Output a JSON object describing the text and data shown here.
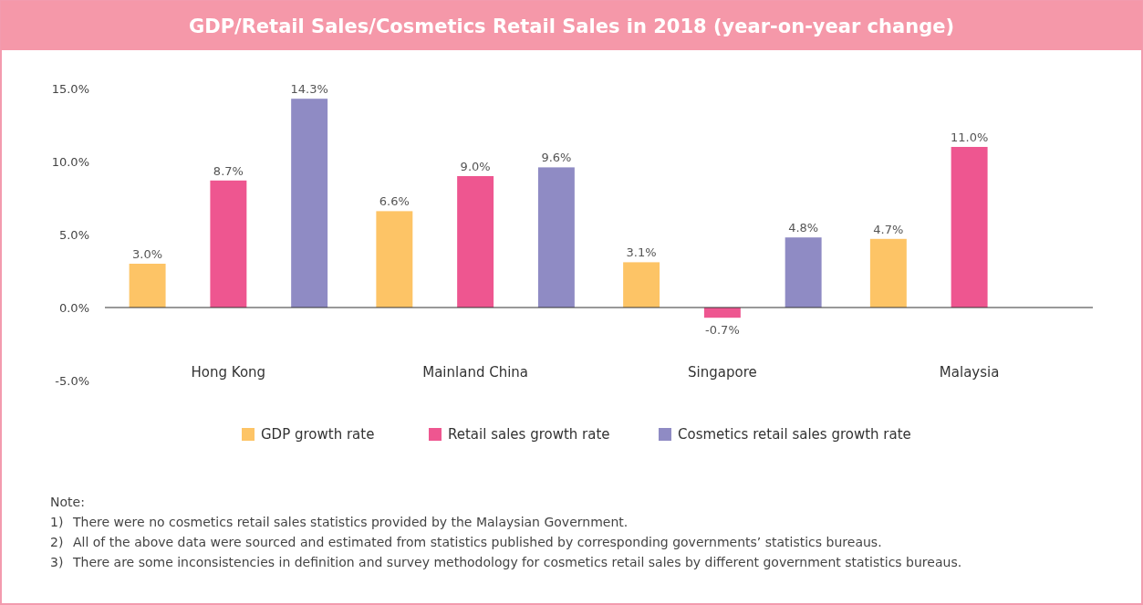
{
  "chart_data": {
    "type": "bar",
    "title": "GDP/Retail Sales/Cosmetics Retail Sales in 2018 (year-on-year change)",
    "categories": [
      "Hong Kong",
      "Mainland China",
      "Singapore",
      "Malaysia"
    ],
    "series": [
      {
        "name": "GDP growth rate",
        "color": "#fdc466",
        "values": [
          3.0,
          6.6,
          3.1,
          4.7
        ],
        "value_labels": [
          "3.0%",
          "6.6%",
          "3.1%",
          "4.7%"
        ]
      },
      {
        "name": "Retail sales growth rate",
        "color": "#ee5690",
        "values": [
          8.7,
          9.0,
          -0.7,
          11.0
        ],
        "value_labels": [
          "8.7%",
          "9.0%",
          "-0.7%",
          "11.0%"
        ]
      },
      {
        "name": "Cosmetics retail sales growth rate",
        "color": "#8f8bc4",
        "values": [
          14.3,
          9.6,
          4.8,
          null
        ],
        "value_labels": [
          "14.3%",
          "9.6%",
          "4.8%",
          null
        ]
      }
    ],
    "ylim": [
      -5,
      15
    ],
    "yticks": [
      {
        "value": -5,
        "label": "-5.0%"
      },
      {
        "value": 0,
        "label": "0.0%"
      },
      {
        "value": 5,
        "label": "5.0%"
      },
      {
        "value": 10,
        "label": "10.0%"
      },
      {
        "value": 15,
        "label": "15.0%"
      }
    ],
    "legend": "bottom",
    "annotations": [
      "Note:",
      "1) There were no cosmetics retail sales statistics provided by the Malaysian Government.",
      "2) All of the above data were sourced and estimated from statistics published by corresponding governments’ statistics bureaus.",
      "3) There are some inconsistencies in definition and survey methodology for cosmetics retail sales by different government statistics bureaus."
    ]
  }
}
